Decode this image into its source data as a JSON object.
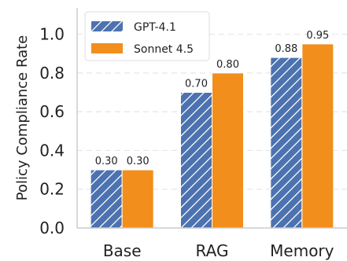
{
  "chart_data": {
    "type": "bar",
    "categories": [
      "Base",
      "RAG",
      "Memory"
    ],
    "series": [
      {
        "name": "GPT-4.1",
        "values": [
          0.3,
          0.7,
          0.88
        ],
        "color": "#4c72b0",
        "pattern": "hatch"
      },
      {
        "name": "Sonnet 4.5",
        "values": [
          0.3,
          0.8,
          0.95
        ],
        "color": "#f28e1c",
        "pattern": "solid"
      }
    ],
    "data_labels": [
      [
        "0.30",
        "0.70",
        "0.88"
      ],
      [
        "0.30",
        "0.80",
        "0.95"
      ]
    ],
    "ylabel": "Policy Compliance Rate",
    "ylim": [
      0,
      1.12
    ],
    "yticks": [
      0.0,
      0.2,
      0.4,
      0.6,
      0.8,
      1.0
    ],
    "ytick_labels": [
      "0.0",
      "0.2",
      "0.4",
      "0.6",
      "0.8",
      "1.0"
    ],
    "grid": true,
    "legend_position": "top-left"
  }
}
